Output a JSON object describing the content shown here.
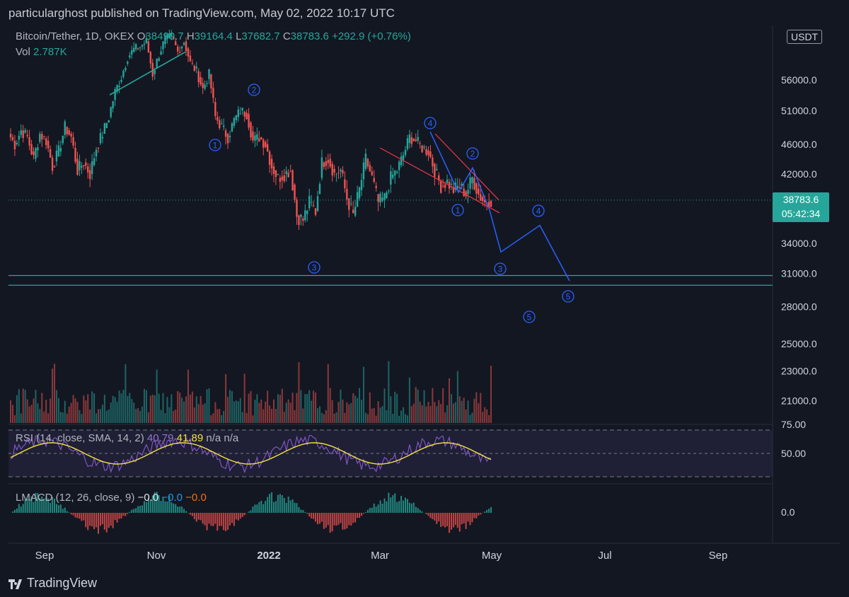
{
  "header": {
    "title": "particularghost published on TradingView.com, May 02, 2022 10:17 UTC"
  },
  "footer": {
    "brand": "TradingView"
  },
  "symbol": {
    "name": "Bitcoin/Tether, 1D, OKEX",
    "open_label": "O",
    "open": "38490.7",
    "high_label": "H",
    "high": "39164.4",
    "low_label": "L",
    "low": "37682.7",
    "close_label": "C",
    "close": "38783.6",
    "change": "+292.9 (+0.76%)",
    "currency": "USDT",
    "last_price": "38783.6",
    "countdown": "05:42:34"
  },
  "volume": {
    "label": "Vol",
    "value": "2.787K"
  },
  "rsi": {
    "label": "RSI (14, close, SMA, 14, 2)",
    "value1": "40.79",
    "value2": "41.89",
    "na1": "n/a",
    "na2": "n/a",
    "ticks": [
      "75.00",
      "50.00"
    ]
  },
  "lmacd": {
    "label": "LMACD (12, 26, close, 9)",
    "v1": "−0.0",
    "v2": "−0.0",
    "v3": "−0.0",
    "tick": "0.0"
  },
  "colors": {
    "background": "#131722",
    "up": "#26a69a",
    "down": "#ef5350",
    "rsi_line": "#7e57c2",
    "rsi_sma": "#f5e342",
    "wave": "#2962ff",
    "trend": "#f23645",
    "level": "#26a69a"
  },
  "chart_data": {
    "type": "candlestick",
    "price_axis_ticks": [
      56000.0,
      51000.0,
      46000.0,
      42000.0,
      38783.6,
      34000.0,
      31000.0,
      28000.0,
      25000.0,
      23000.0,
      21000.0
    ],
    "price_axis_labels": [
      "56000.0",
      "51000.0",
      "46000.0",
      "42000.0",
      "34000.0",
      "31000.0",
      "28000.0",
      "25000.0",
      "23000.0",
      "21000.0"
    ],
    "x_ticks": [
      "Sep",
      "Nov",
      "2022",
      "Mar",
      "May",
      "Jul",
      "Sep"
    ],
    "support_levels": [
      30800,
      29900
    ],
    "wave_labels_left": [
      "1",
      "2",
      "3"
    ],
    "wave_labels_right": [
      "4",
      "1",
      "2",
      "3",
      "4",
      "5",
      "5"
    ],
    "ohlc_last": {
      "open": 38490.7,
      "high": 39164.4,
      "low": 37682.7,
      "close": 38783.6
    },
    "approx_closes": [
      47500,
      46000,
      48000,
      47000,
      44000,
      47500,
      46500,
      43000,
      45000,
      48500,
      47000,
      42500,
      43500,
      42000,
      45500,
      47500,
      50000,
      54000,
      56500,
      60000,
      61500,
      62000,
      63000,
      57000,
      60500,
      63500,
      64000,
      61000,
      63000,
      59000,
      57500,
      54500,
      57000,
      50000,
      48500,
      47000,
      49500,
      51000,
      50500,
      46500,
      47000,
      46000,
      43000,
      41500,
      42000,
      42500,
      37000,
      36500,
      38500,
      37500,
      43500,
      44000,
      42000,
      42500,
      39000,
      37000,
      40000,
      44000,
      41500,
      38500,
      39000,
      41500,
      42500,
      44500,
      47000,
      46500,
      45500,
      45000,
      42500,
      40500,
      41000,
      40000,
      40500,
      39500,
      41500,
      39500,
      38500,
      38800
    ]
  }
}
